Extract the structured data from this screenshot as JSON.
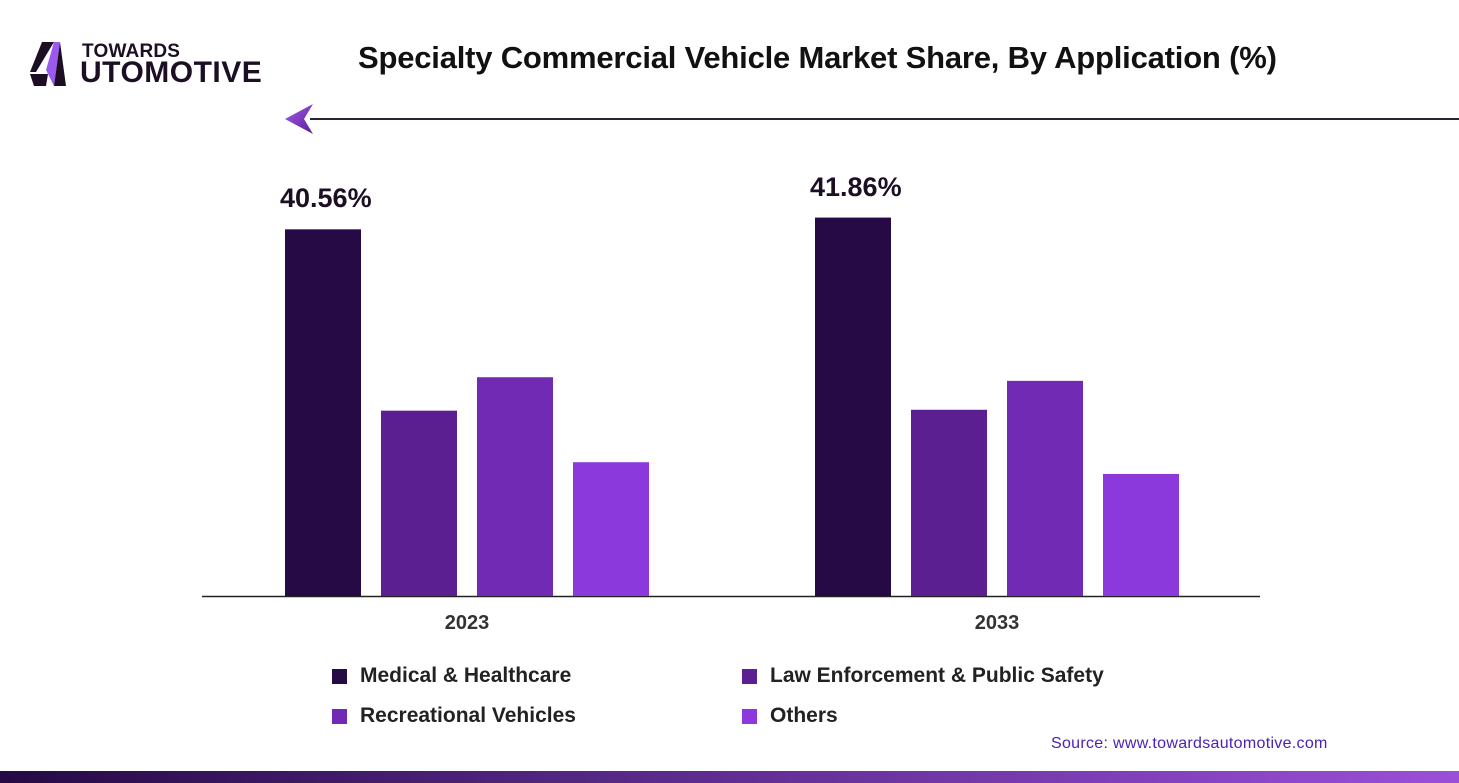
{
  "brand": {
    "logo_top": "TOWARDS",
    "logo_bottom": "UTOMOTIVE",
    "logo_text": "TOWARDS AUTOMOTIVE"
  },
  "source": "Source: www.towardsautomotive.com",
  "colors": {
    "medical": "#260a46",
    "law": "#5b1f92",
    "recreational": "#712ab4",
    "others": "#8b38dc",
    "accent": "#8b38dc"
  },
  "chart_data": {
    "type": "bar",
    "title": "Specialty Commercial Vehicle Market Share, By Application (%)",
    "xlabel": "",
    "ylabel": "",
    "ylim": [
      0,
      45
    ],
    "grid": false,
    "legend_position": "bottom",
    "categories": [
      "2023",
      "2033"
    ],
    "series": [
      {
        "name": "Medical & Healthcare",
        "color": "#260a46",
        "values": [
          40.56,
          41.86
        ]
      },
      {
        "name": "Law Enforcement & Public Safety",
        "color": "#5b1f92",
        "values": [
          20.5,
          20.6
        ]
      },
      {
        "name": "Recreational Vehicles",
        "color": "#712ab4",
        "values": [
          24.2,
          23.8
        ]
      },
      {
        "name": "Others",
        "color": "#8b38dc",
        "values": [
          14.8,
          13.5
        ]
      }
    ],
    "data_labels": [
      "40.56%",
      "41.86%"
    ]
  }
}
